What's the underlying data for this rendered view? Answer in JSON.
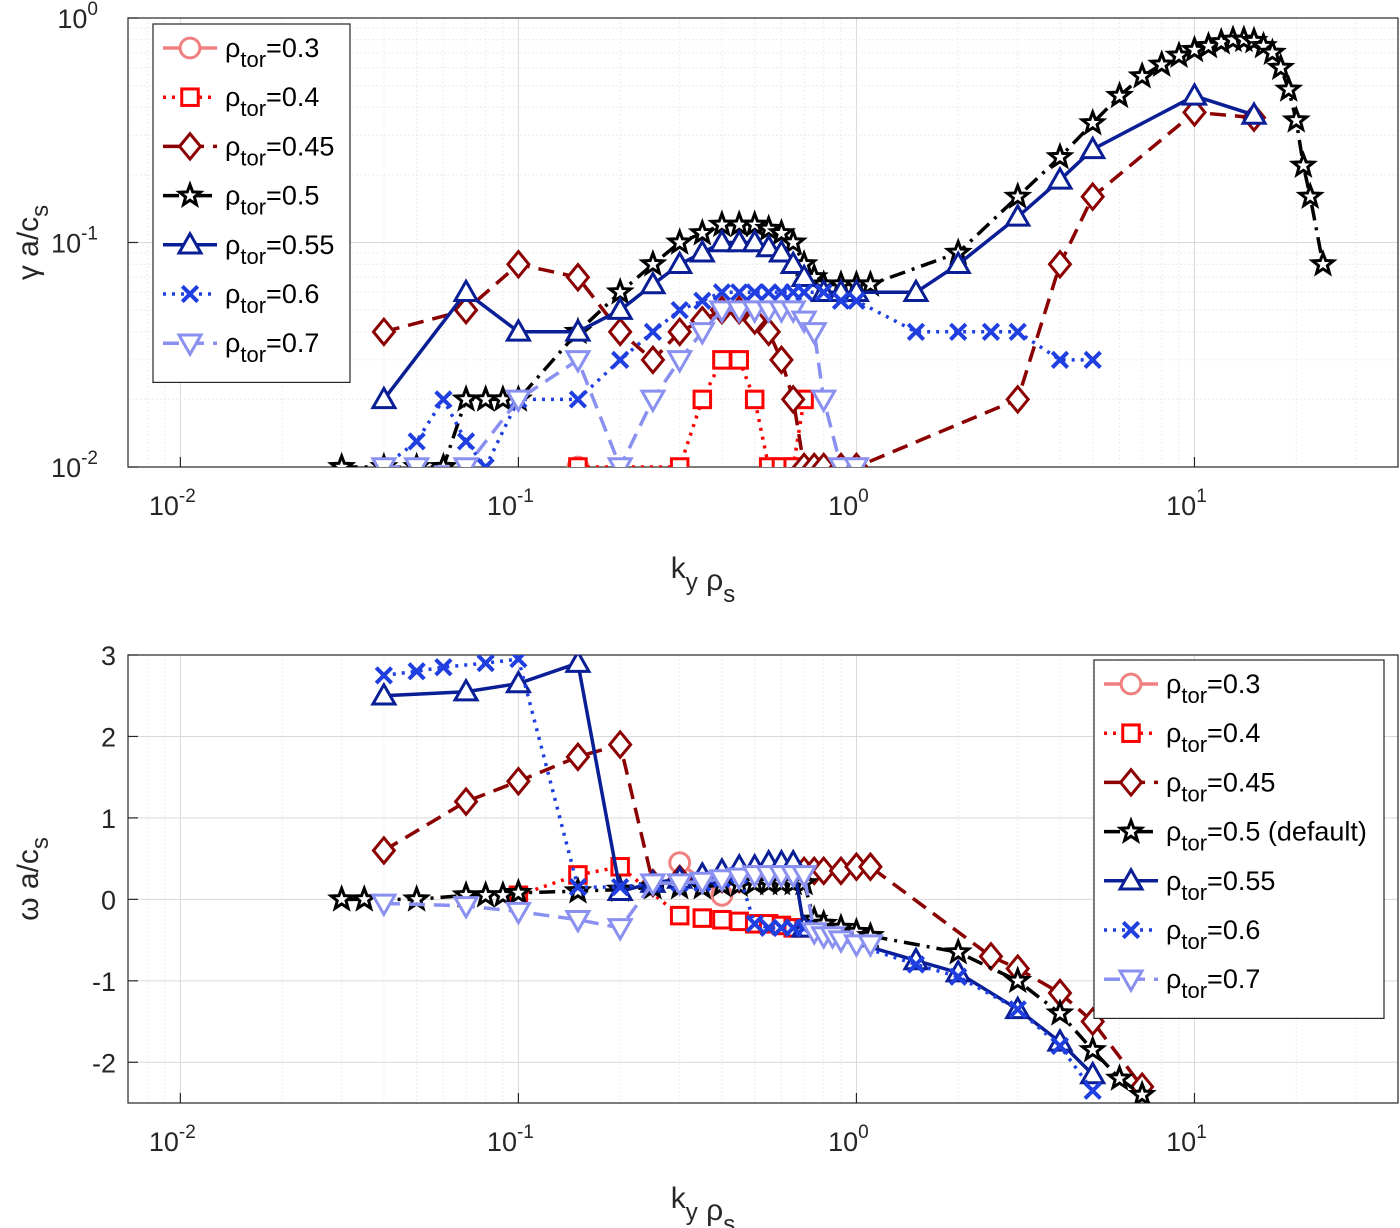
{
  "chart_data": [
    {
      "type": "line",
      "xscale": "log",
      "yscale": "log",
      "xlim": [
        0.007,
        40
      ],
      "ylim": [
        0.01,
        1
      ],
      "xlabel": "k_y ρ_s",
      "ylabel": "γ a/c_s",
      "grid": true,
      "legend_position": "top-left",
      "xticks": [
        {
          "v": 0.01,
          "b": "10",
          "e": "-2"
        },
        {
          "v": 0.1,
          "b": "10",
          "e": "-1"
        },
        {
          "v": 1,
          "b": "10",
          "e": "0"
        },
        {
          "v": 10,
          "b": "10",
          "e": "1"
        }
      ],
      "yticks": [
        {
          "v": 0.01,
          "b": "10",
          "e": "-2"
        },
        {
          "v": 0.1,
          "b": "10",
          "e": "-1"
        },
        {
          "v": 1,
          "b": "10",
          "e": "0"
        }
      ],
      "series": [
        {
          "name": "ρ_tor=0.3",
          "color": "#f08080",
          "marker": "circle",
          "dash": "solid",
          "x": [
            0.15
          ],
          "y": [
            0.01
          ]
        },
        {
          "name": "ρ_tor=0.4",
          "color": "#ff0000",
          "marker": "square",
          "dash": "dotted",
          "x": [
            0.15,
            0.3,
            0.35,
            0.4,
            0.45,
            0.5,
            0.55,
            0.6,
            0.65,
            0.7
          ],
          "y": [
            0.01,
            0.01,
            0.02,
            0.03,
            0.03,
            0.02,
            0.01,
            0.01,
            0.01,
            0.02
          ]
        },
        {
          "name": "ρ_tor=0.45",
          "color": "#8b0000",
          "marker": "diamond",
          "dash": "dashed",
          "x": [
            0.04,
            0.07,
            0.1,
            0.15,
            0.2,
            0.25,
            0.3,
            0.35,
            0.4,
            0.45,
            0.5,
            0.55,
            0.6,
            0.65,
            0.7,
            0.75,
            0.8,
            0.9,
            1.0,
            3.0,
            4.0,
            5.0,
            10.0,
            15.0
          ],
          "y": [
            0.04,
            0.05,
            0.08,
            0.07,
            0.04,
            0.03,
            0.04,
            0.045,
            0.05,
            0.05,
            0.045,
            0.04,
            0.03,
            0.02,
            0.01,
            0.01,
            0.01,
            0.01,
            0.01,
            0.02,
            0.08,
            0.16,
            0.38,
            0.36
          ]
        },
        {
          "name": "ρ_tor=0.5",
          "color": "#000000",
          "marker": "star",
          "dash": "dashdot",
          "x": [
            0.03,
            0.04,
            0.05,
            0.06,
            0.07,
            0.08,
            0.09,
            0.1,
            0.15,
            0.2,
            0.25,
            0.3,
            0.35,
            0.4,
            0.45,
            0.5,
            0.55,
            0.6,
            0.65,
            0.7,
            0.75,
            0.8,
            0.9,
            1.0,
            1.1,
            2.0,
            3.0,
            4.0,
            5.0,
            6.0,
            7.0,
            8.0,
            9.0,
            10.0,
            11.0,
            12.0,
            13.0,
            14.0,
            15.0,
            16.0,
            17.0,
            18.0,
            19.0,
            20.0,
            21.0,
            22.0,
            24.0
          ],
          "y": [
            0.01,
            0.01,
            0.01,
            0.01,
            0.02,
            0.02,
            0.02,
            0.02,
            0.04,
            0.06,
            0.08,
            0.1,
            0.11,
            0.12,
            0.12,
            0.12,
            0.115,
            0.11,
            0.1,
            0.08,
            0.07,
            0.065,
            0.065,
            0.065,
            0.065,
            0.09,
            0.16,
            0.24,
            0.34,
            0.45,
            0.55,
            0.62,
            0.68,
            0.72,
            0.75,
            0.78,
            0.8,
            0.8,
            0.79,
            0.75,
            0.7,
            0.6,
            0.48,
            0.35,
            0.22,
            0.16,
            0.08
          ]
        },
        {
          "name": "ρ_tor=0.55",
          "color": "#0a1e96",
          "marker": "triangle-up",
          "dash": "solid",
          "x": [
            0.04,
            0.07,
            0.1,
            0.15,
            0.2,
            0.25,
            0.3,
            0.35,
            0.4,
            0.45,
            0.5,
            0.55,
            0.6,
            0.65,
            0.7,
            0.8,
            0.9,
            1.0,
            1.5,
            2.0,
            3.0,
            4.0,
            5.0,
            10.0,
            15.0
          ],
          "y": [
            0.02,
            0.06,
            0.04,
            0.04,
            0.05,
            0.065,
            0.08,
            0.09,
            0.1,
            0.1,
            0.1,
            0.095,
            0.09,
            0.08,
            0.07,
            0.06,
            0.06,
            0.06,
            0.06,
            0.08,
            0.13,
            0.19,
            0.26,
            0.45,
            0.37
          ]
        },
        {
          "name": "ρ_tor=0.6",
          "color": "#1f3fe0",
          "marker": "x",
          "dash": "dotted",
          "x": [
            0.04,
            0.05,
            0.06,
            0.07,
            0.08,
            0.1,
            0.15,
            0.2,
            0.25,
            0.3,
            0.35,
            0.4,
            0.45,
            0.5,
            0.55,
            0.6,
            0.65,
            0.7,
            0.8,
            0.9,
            1.0,
            1.5,
            2.0,
            2.5,
            3.0,
            4.0,
            5.0
          ],
          "y": [
            0.01,
            0.013,
            0.02,
            0.013,
            0.01,
            0.02,
            0.02,
            0.03,
            0.04,
            0.05,
            0.055,
            0.06,
            0.06,
            0.06,
            0.06,
            0.06,
            0.06,
            0.06,
            0.06,
            0.055,
            0.055,
            0.04,
            0.04,
            0.04,
            0.04,
            0.03,
            0.03
          ]
        },
        {
          "name": "ρ_tor=0.7",
          "color": "#8a90f0",
          "marker": "triangle-down",
          "dash": "dashed",
          "x": [
            0.04,
            0.05,
            0.07,
            0.1,
            0.15,
            0.2,
            0.25,
            0.3,
            0.35,
            0.4,
            0.45,
            0.5,
            0.55,
            0.6,
            0.65,
            0.7,
            0.75,
            0.8,
            0.9,
            1.0
          ],
          "y": [
            0.01,
            0.01,
            0.01,
            0.02,
            0.03,
            0.01,
            0.02,
            0.03,
            0.04,
            0.05,
            0.05,
            0.05,
            0.05,
            0.05,
            0.05,
            0.045,
            0.04,
            0.02,
            0.01,
            0.01
          ]
        }
      ]
    },
    {
      "type": "line",
      "xscale": "log",
      "yscale": "linear",
      "xlim": [
        0.007,
        40
      ],
      "ylim": [
        -2.5,
        3
      ],
      "xlabel": "k_y ρ_s",
      "ylabel": "ω a/c_s",
      "grid": true,
      "legend_position": "top-right",
      "xticks": [
        {
          "v": 0.01,
          "b": "10",
          "e": "-2"
        },
        {
          "v": 0.1,
          "b": "10",
          "e": "-1"
        },
        {
          "v": 1,
          "b": "10",
          "e": "0"
        },
        {
          "v": 10,
          "b": "10",
          "e": "1"
        }
      ],
      "yticks": [
        {
          "v": 3,
          "t": "3"
        },
        {
          "v": 2,
          "t": "2"
        },
        {
          "v": 1,
          "t": "1"
        },
        {
          "v": 0,
          "t": "0"
        },
        {
          "v": -1,
          "t": "-1"
        },
        {
          "v": -2,
          "t": "-2"
        }
      ],
      "series": [
        {
          "name": "ρ_tor=0.3",
          "color": "#f08080",
          "marker": "circle",
          "dash": "solid",
          "x": [
            0.3,
            0.4
          ],
          "y": [
            0.45,
            0.05
          ]
        },
        {
          "name": "ρ_tor=0.4",
          "color": "#ff0000",
          "marker": "square",
          "dash": "dotted",
          "x": [
            0.1,
            0.15,
            0.2,
            0.3,
            0.35,
            0.4,
            0.45,
            0.5,
            0.55,
            0.6,
            0.65,
            0.7
          ],
          "y": [
            0.05,
            0.3,
            0.4,
            -0.2,
            -0.23,
            -0.25,
            -0.27,
            -0.3,
            -0.3,
            -0.32,
            -0.35,
            -0.35
          ]
        },
        {
          "name": "ρ_tor=0.45",
          "color": "#8b0000",
          "marker": "diamond",
          "dash": "dashed",
          "x": [
            0.04,
            0.07,
            0.1,
            0.15,
            0.2,
            0.25,
            0.3,
            0.35,
            0.4,
            0.45,
            0.5,
            0.55,
            0.6,
            0.65,
            0.7,
            0.75,
            0.8,
            0.9,
            1.0,
            1.1,
            2.5,
            3.0,
            4.0,
            5.0,
            7.0
          ],
          "y": [
            0.6,
            1.2,
            1.45,
            1.75,
            1.9,
            0.2,
            0.25,
            0.25,
            0.25,
            0.25,
            0.3,
            0.3,
            0.3,
            0.3,
            0.35,
            0.35,
            0.35,
            0.35,
            0.4,
            0.4,
            -0.7,
            -0.85,
            -1.15,
            -1.5,
            -2.3
          ]
        },
        {
          "name": "ρ_tor=0.5 (default)",
          "color": "#000000",
          "marker": "star",
          "dash": "dashdot",
          "x": [
            0.03,
            0.035,
            0.05,
            0.07,
            0.08,
            0.09,
            0.1,
            0.15,
            0.2,
            0.25,
            0.3,
            0.35,
            0.4,
            0.45,
            0.5,
            0.55,
            0.6,
            0.65,
            0.7,
            0.75,
            0.8,
            0.9,
            1.0,
            1.1,
            2.0,
            3.0,
            4.0,
            5.0,
            6.0,
            7.0,
            8.0
          ],
          "y": [
            0.0,
            0.0,
            0.0,
            0.05,
            0.05,
            0.05,
            0.08,
            0.1,
            0.12,
            0.15,
            0.15,
            0.15,
            0.18,
            0.18,
            0.2,
            0.2,
            0.2,
            0.2,
            0.2,
            -0.25,
            -0.3,
            -0.35,
            -0.4,
            -0.45,
            -0.65,
            -1.0,
            -1.4,
            -1.85,
            -2.2,
            -2.4,
            -2.7
          ]
        },
        {
          "name": "ρ_tor=0.55",
          "color": "#0a1e96",
          "marker": "triangle-up",
          "dash": "solid",
          "x": [
            0.04,
            0.07,
            0.1,
            0.15,
            0.2,
            0.25,
            0.3,
            0.35,
            0.4,
            0.45,
            0.5,
            0.55,
            0.6,
            0.65,
            0.7,
            1.5,
            2.0,
            3.0,
            4.0,
            5.0
          ],
          "y": [
            2.5,
            2.55,
            2.65,
            2.9,
            0.1,
            0.2,
            0.25,
            0.3,
            0.35,
            0.4,
            0.4,
            0.45,
            0.45,
            0.45,
            -0.35,
            -0.75,
            -0.9,
            -1.35,
            -1.75,
            -2.15
          ]
        },
        {
          "name": "ρ_tor=0.6",
          "color": "#1f3fe0",
          "marker": "x",
          "dash": "dotted",
          "x": [
            0.04,
            0.05,
            0.06,
            0.08,
            0.1,
            0.15,
            0.2,
            0.25,
            0.3,
            0.35,
            0.4,
            0.45,
            0.5,
            0.55,
            0.6,
            0.65,
            0.7,
            1.5,
            2.0,
            3.0,
            4.0,
            5.0
          ],
          "y": [
            2.75,
            2.8,
            2.85,
            2.9,
            2.95,
            0.15,
            0.15,
            0.2,
            0.2,
            0.2,
            0.25,
            0.3,
            -0.3,
            -0.35,
            -0.35,
            -0.35,
            -0.35,
            -0.8,
            -0.95,
            -1.35,
            -1.8,
            -2.35
          ]
        },
        {
          "name": "ρ_tor=0.7",
          "color": "#8a90f0",
          "marker": "triangle-down",
          "dash": "dashed",
          "x": [
            0.04,
            0.07,
            0.1,
            0.15,
            0.2,
            0.25,
            0.3,
            0.35,
            0.4,
            0.45,
            0.5,
            0.55,
            0.6,
            0.65,
            0.7,
            0.75,
            0.8,
            0.85,
            0.9,
            1.0,
            1.1
          ],
          "y": [
            -0.05,
            -0.08,
            -0.15,
            -0.25,
            -0.35,
            0.2,
            0.2,
            0.22,
            0.25,
            0.27,
            0.3,
            0.3,
            0.3,
            0.3,
            0.3,
            -0.4,
            -0.45,
            -0.45,
            -0.5,
            -0.55,
            -0.55
          ]
        }
      ]
    }
  ]
}
